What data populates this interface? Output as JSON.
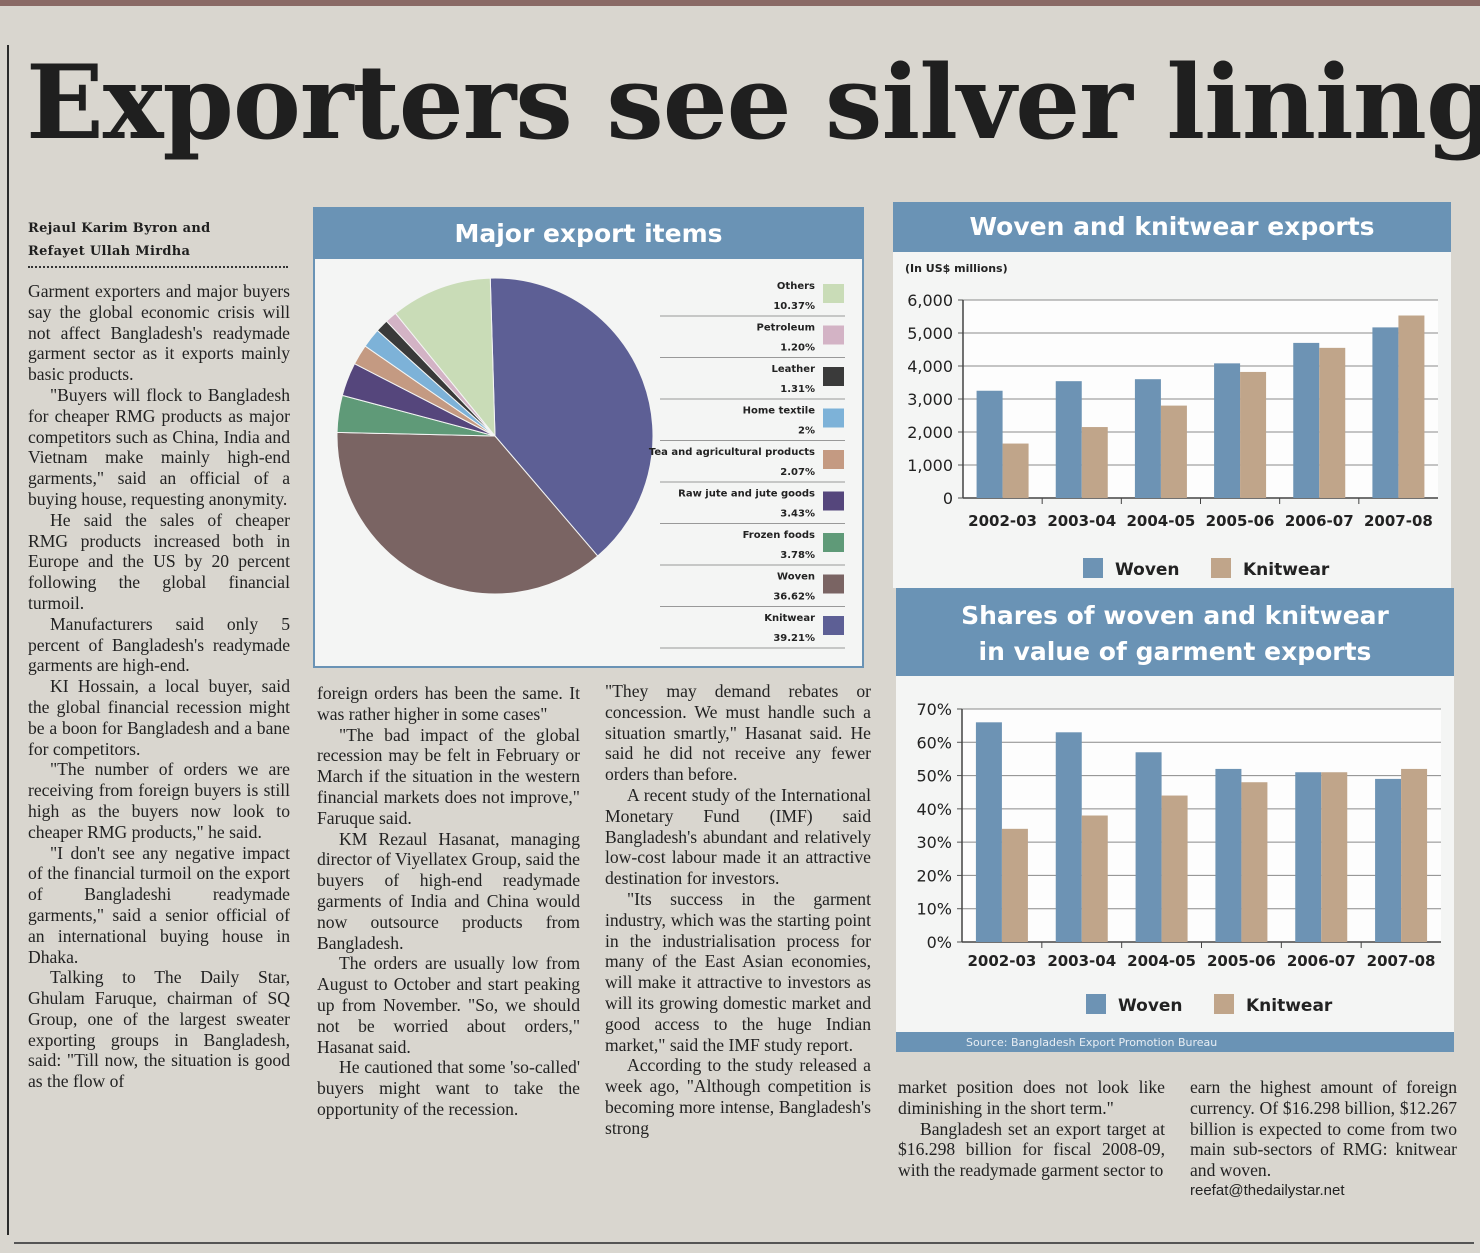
{
  "headline": "Exporters see silver lining",
  "byline": [
    "Rejaul Karim Byron and",
    "Refayet Ullah Mirdha"
  ],
  "col1": [
    "Garment exporters and major buyers say the global economic crisis will not affect Bangladesh's readymade garment sector as it exports mainly basic products.",
    "\"Buyers will flock to Bangladesh for cheaper RMG products as major competitors such as China, India and Vietnam make mainly high-end garments,\" said an official of a buying house, requesting anonymity.",
    "He said the sales of cheaper RMG products increased both in Europe and the US by 20 percent following the global financial turmoil.",
    "Manufacturers said only 5 percent of Bangladesh's readymade garments are high-end.",
    "KI Hossain, a local buyer, said the global financial recession might be a boon for Bangladesh and a bane for competitors.",
    "\"The number of orders we are receiving from foreign buyers is still high as the buyers now look to cheaper RMG products,\" he said.",
    "\"I don't see any negative impact of the financial turmoil on the export of Bangladeshi readymade garments,\" said a senior official of an international buying house in Dhaka.",
    "Talking to The Daily Star, Ghulam Faruque, chairman of SQ Group, one of the largest sweater exporting groups in Bangladesh, said: \"Till now, the situation is good as the flow of"
  ],
  "col2": [
    "foreign orders has been the same. It was rather higher in some cases\"",
    "\"The bad impact of the global recession may be felt in February or March if the situation in the western financial markets does not improve,\" Faruque said.",
    "KM Rezaul Hasanat, managing director of Viyellatex Group, said the buyers of high-end readymade garments of India and China would now outsource products from Bangladesh.",
    "The orders are usually low from August to October and start peaking up from November. \"So, we should not be worried about orders,\" Hasanat said.",
    "He cautioned that some 'so-called' buyers might want to take the opportunity of the recession."
  ],
  "col3": [
    "\"They may demand rebates or concession. We must handle such a situation smartly,\" Hasanat said. He said he did not receive any fewer orders than before.",
    "A recent study of the International Monetary Fund (IMF) said Bangladesh's abundant and relatively low-cost labour made it an attractive destination for investors.",
    "\"Its success in the garment industry, which was the starting point in the industrialisation process for many of the East Asian economies, will make it attractive to investors as will its growing domestic market and good access to the huge Indian market,\" said the IMF study report.",
    "According to the study released a week ago, \"Although competition is becoming more intense, Bangladesh's strong"
  ],
  "col4": [
    "market position does not look like diminishing in the short term.\"",
    "Bangladesh set an export target at $16.298 billion for fiscal 2008-09, with the readymade garment sector to"
  ],
  "col5": [
    "earn the highest amount of foreign currency. Of $16.298 billion, $12.267 billion is expected to come from two main sub-sectors of RMG: knitwear and woven."
  ],
  "email": "reefat@thedailystar.net",
  "source": "Source: Bangladesh Export Promotion Bureau",
  "colors": {
    "woven_bar": "#6d93b4",
    "knit_bar": "#c0a58a",
    "panel_blue": "#6a93b5"
  },
  "chart_data": [
    {
      "type": "pie",
      "title": "Major export items",
      "slices": [
        {
          "label": "Others",
          "value_label": "10.37%",
          "value": 10.37,
          "color": "#c9dcb7"
        },
        {
          "label": "Petroleum",
          "value_label": "1.20%",
          "value": 1.2,
          "color": "#d3b3c5"
        },
        {
          "label": "Leather",
          "value_label": "1.31%",
          "value": 1.31,
          "color": "#3a3a3a"
        },
        {
          "label": "Home textile",
          "value_label": "2%",
          "value": 2,
          "color": "#7db2d8"
        },
        {
          "label": "Tea and agricultural products",
          "value_label": "2.07%",
          "value": 2.07,
          "color": "#c49a82"
        },
        {
          "label": "Raw jute and jute goods",
          "value_label": "3.43%",
          "value": 3.43,
          "color": "#55467c"
        },
        {
          "label": "Frozen foods",
          "value_label": "3.78%",
          "value": 3.78,
          "color": "#5f9a78"
        },
        {
          "label": "Woven",
          "value_label": "36.62%",
          "value": 36.62,
          "color": "#7a6463"
        },
        {
          "label": "Knitwear",
          "value_label": "39.21%",
          "value": 39.21,
          "color": "#5d5f95"
        }
      ]
    },
    {
      "type": "bar",
      "title": "Woven and knitwear exports",
      "ylabel": "(In US$ millions)",
      "categories": [
        "2002-03",
        "2003-04",
        "2004-05",
        "2005-06",
        "2006-07",
        "2007-08"
      ],
      "series": [
        {
          "name": "Woven",
          "values": [
            3250,
            3540,
            3600,
            4080,
            4700,
            5170
          ]
        },
        {
          "name": "Knitwear",
          "values": [
            1650,
            2150,
            2800,
            3820,
            4550,
            5530
          ]
        }
      ],
      "yticks": [
        "6,000",
        "5,000",
        "4,000",
        "3,000",
        "2,000",
        "1,000",
        "0"
      ],
      "ylim": [
        0,
        6000
      ]
    },
    {
      "type": "bar",
      "title": [
        "Shares of woven and knitwear",
        "in value of garment exports"
      ],
      "categories": [
        "2002-03",
        "2003-04",
        "2004-05",
        "2005-06",
        "2006-07",
        "2007-08"
      ],
      "series": [
        {
          "name": "Woven",
          "values": [
            66,
            63,
            57,
            52,
            51,
            49
          ]
        },
        {
          "name": "Knitwear",
          "values": [
            34,
            38,
            44,
            48,
            51,
            52
          ]
        }
      ],
      "yticks": [
        "70%",
        "60%",
        "50%",
        "40%",
        "30%",
        "20%",
        "10%",
        "0%"
      ],
      "ylim": [
        0,
        70
      ]
    }
  ]
}
